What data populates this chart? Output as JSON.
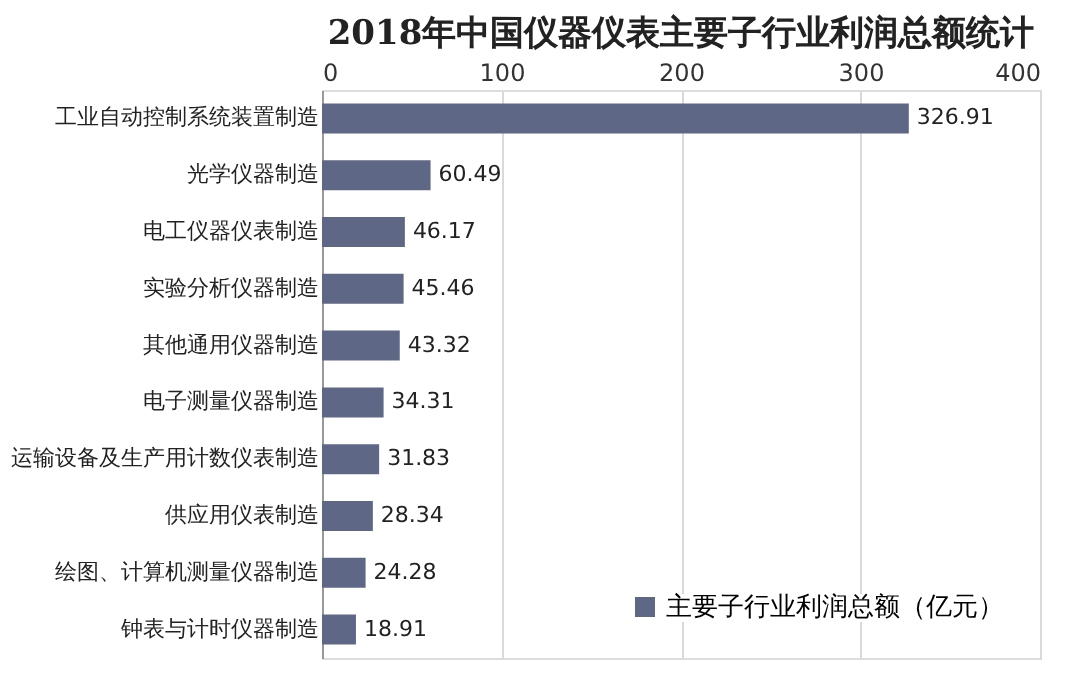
{
  "chart_data": {
    "type": "bar",
    "orientation": "horizontal",
    "title": "2018年中国仪器仪表主要子行业利润总额统计",
    "categories": [
      "工业自动控制系统装置制造",
      "光学仪器制造",
      "电工仪器仪表制造",
      "实验分析仪器制造",
      "其他通用仪器制造",
      "电子测量仪器制造",
      "运输设备及生产用计数仪表制造",
      "供应用仪表制造",
      "绘图、计算机测量仪器制造",
      "钟表与计时仪器制造"
    ],
    "series": [
      {
        "name": "主要子行业利润总额（亿元）",
        "color": "#5f6787",
        "values": [
          326.91,
          60.49,
          46.17,
          45.46,
          43.32,
          34.31,
          31.83,
          28.34,
          24.28,
          18.91
        ]
      }
    ],
    "xlim": [
      0,
      400
    ],
    "xticks": [
      0,
      100,
      200,
      300,
      400
    ],
    "grid": "x",
    "legend": "bottom right",
    "data_labels": true
  }
}
